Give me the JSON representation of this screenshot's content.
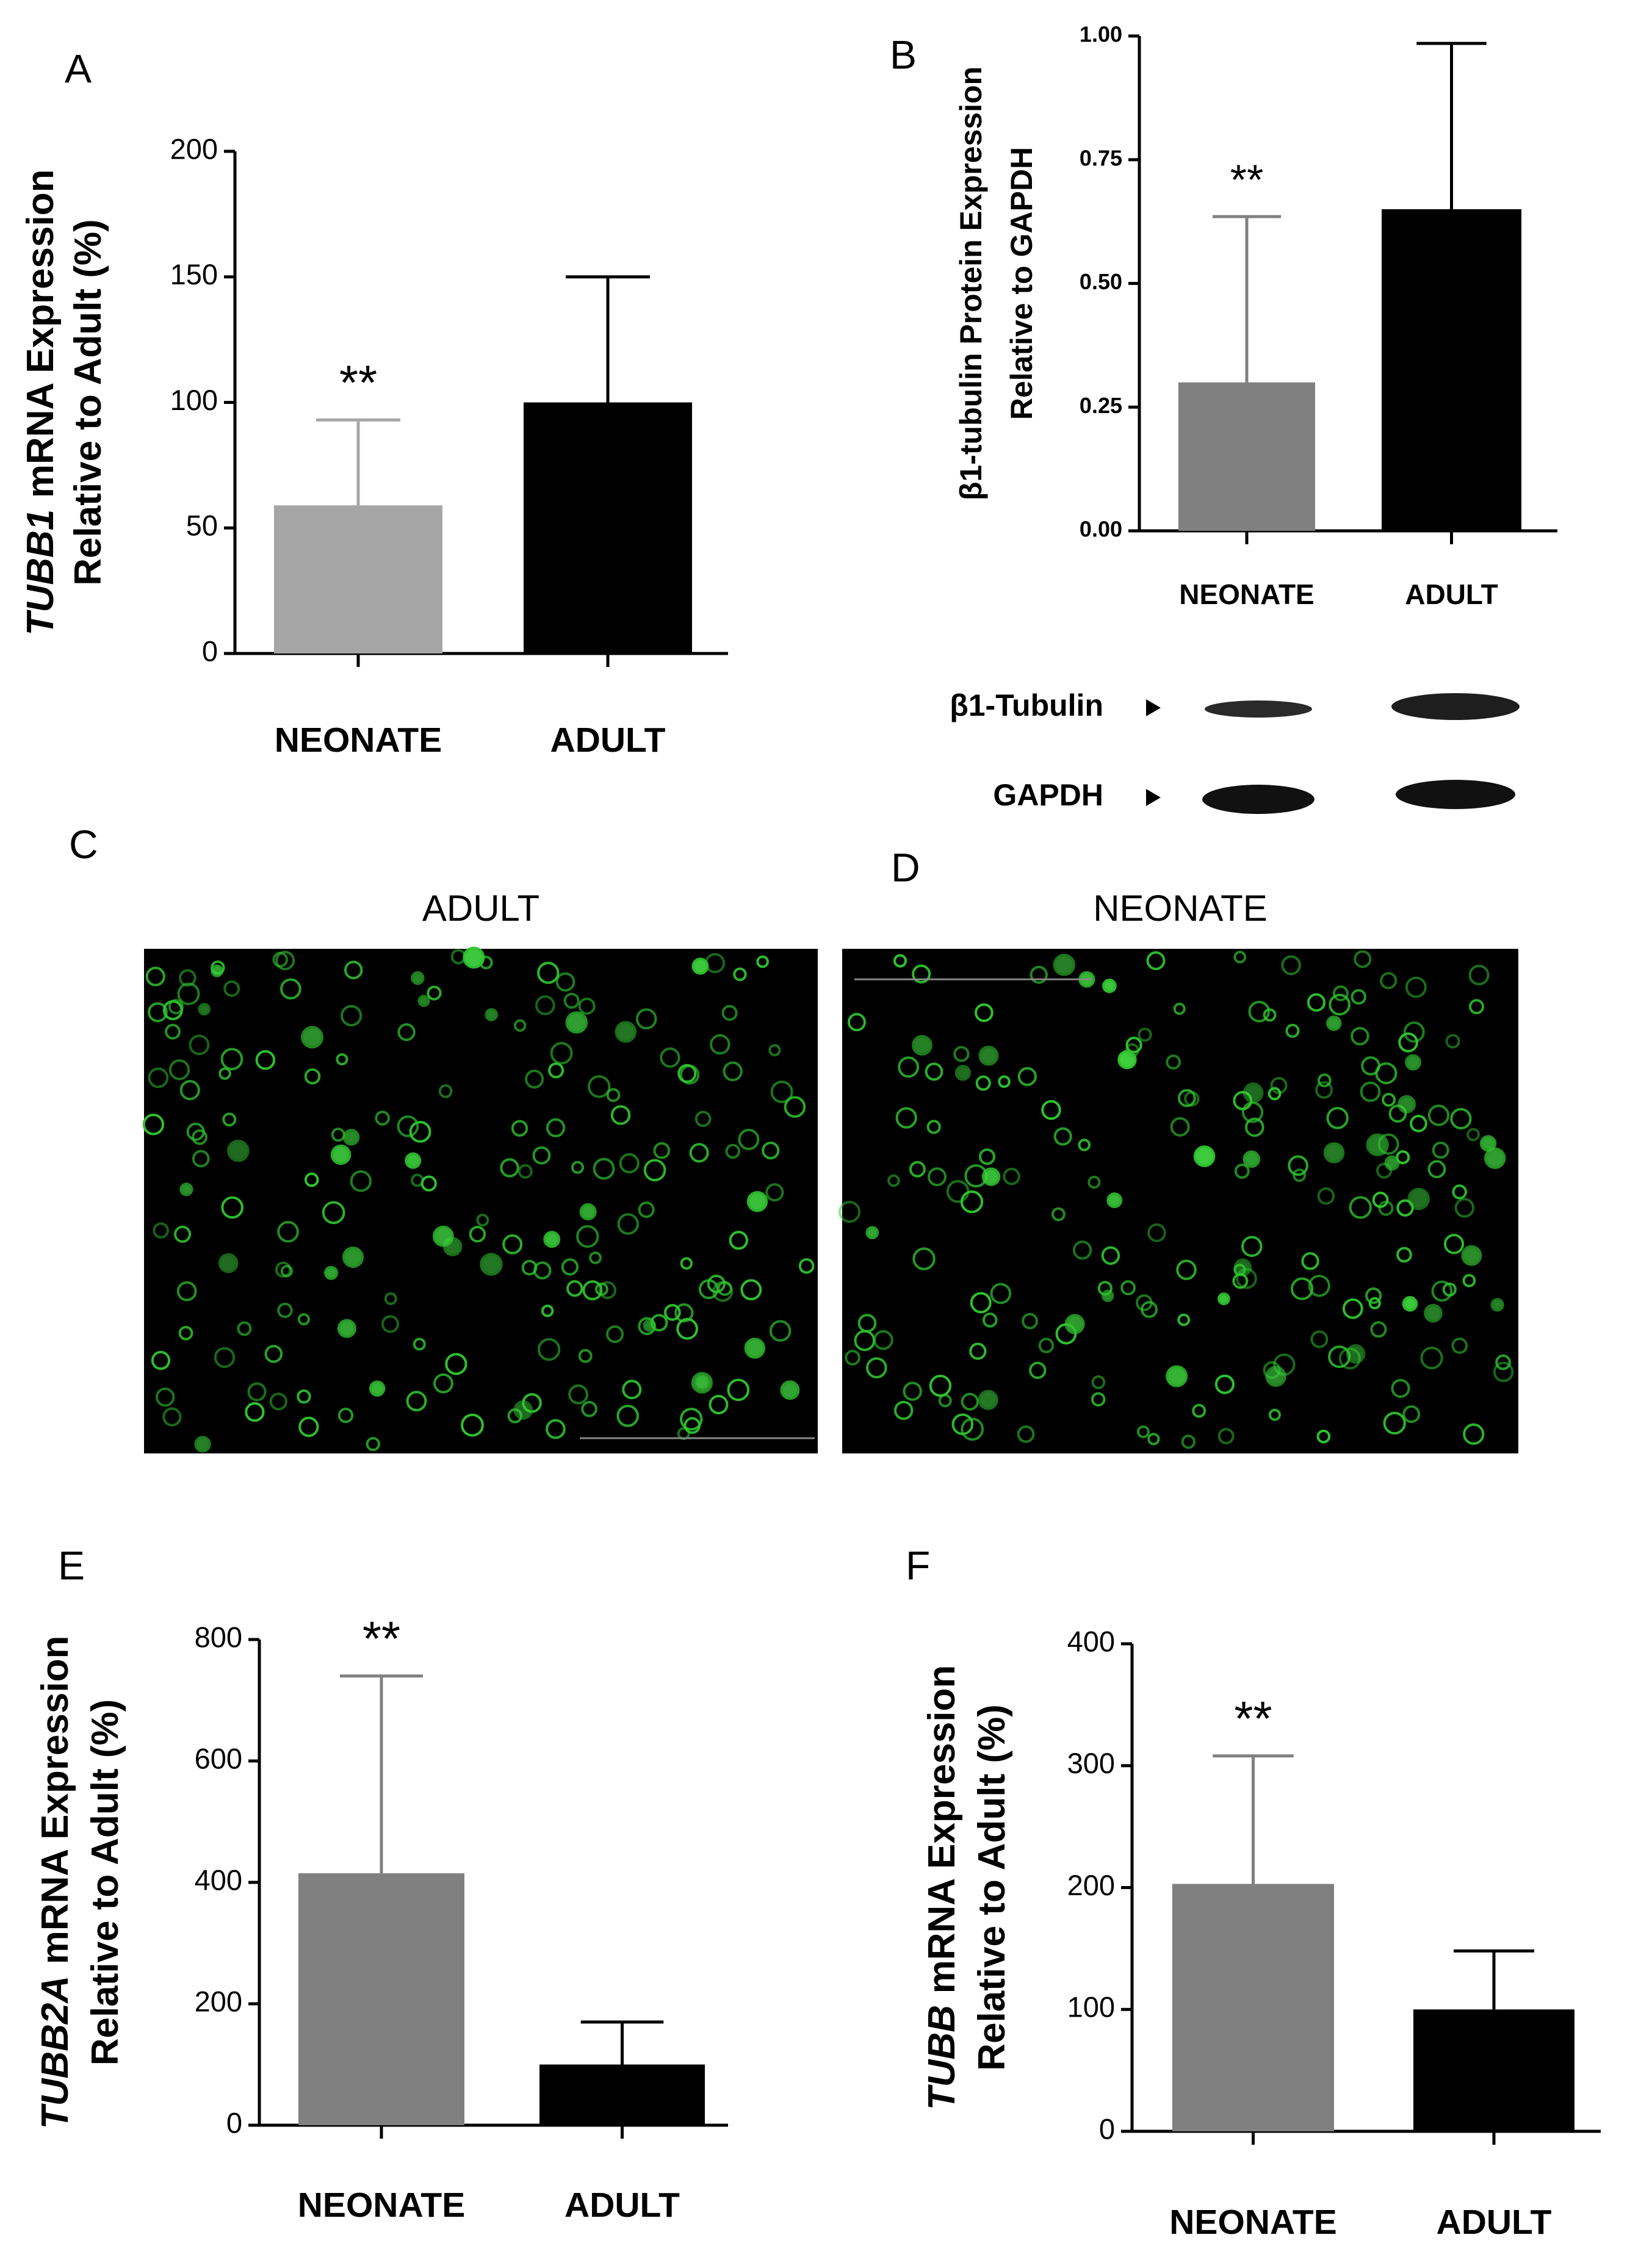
{
  "chart_data": [
    {
      "type": "bar",
      "panel": "A",
      "categories": [
        "NEONATE",
        "ADULT"
      ],
      "values": [
        59,
        100
      ],
      "errors": [
        34,
        50
      ],
      "colors": [
        "#a6a6a6",
        "#000000"
      ],
      "significance": [
        "**",
        null
      ],
      "ylabel_gene": "TUBB1",
      "ylabel": [
        "mRNA Expression",
        "Relative to Adult (%)"
      ],
      "ylim": [
        0,
        200
      ],
      "yticks": [
        0,
        50,
        100,
        150,
        200
      ]
    },
    {
      "type": "bar",
      "panel": "B",
      "categories": [
        "NEONATE",
        "ADULT"
      ],
      "values": [
        0.3,
        0.65
      ],
      "errors": [
        0.335,
        0.335
      ],
      "colors": [
        "#808080",
        "#000000"
      ],
      "significance": [
        "**",
        null
      ],
      "ylabel": [
        "β1-tubulin Protein Expression",
        "Relative to GAPDH"
      ],
      "ylim": [
        0,
        1
      ],
      "yticks": [
        {
          "value": 0,
          "label": "0.00"
        },
        {
          "value": 0.25,
          "label": "0.25"
        },
        {
          "value": 0.5,
          "label": "0.50"
        },
        {
          "value": 0.75,
          "label": "0.75"
        },
        {
          "value": 1,
          "label": "1.00"
        }
      ]
    },
    {
      "type": "bar",
      "panel": "E",
      "categories": [
        "NEONATE",
        "ADULT"
      ],
      "values": [
        415,
        100
      ],
      "errors": [
        325,
        70
      ],
      "colors": [
        "#808080",
        "#000000"
      ],
      "significance": [
        "**",
        null
      ],
      "ylabel_gene": "TUBB2A",
      "ylabel": [
        "mRNA Expression",
        "Relative to Adult (%)"
      ],
      "ylim": [
        0,
        800
      ],
      "yticks": [
        0,
        200,
        400,
        600,
        800
      ]
    },
    {
      "type": "bar",
      "panel": "F",
      "categories": [
        "NEONATE",
        "ADULT"
      ],
      "values": [
        203,
        100
      ],
      "errors": [
        105,
        48
      ],
      "colors": [
        "#808080",
        "#000000"
      ],
      "significance": [
        "**",
        null
      ],
      "ylabel_gene": "TUBB",
      "ylabel": [
        "mRNA Expression",
        "Relative to Adult (%)"
      ],
      "ylim": [
        0,
        400
      ],
      "yticks": [
        0,
        100,
        200,
        300,
        400
      ]
    }
  ],
  "blot": {
    "labels": [
      "β1-Tubulin",
      "GAPDH"
    ]
  },
  "images": [
    {
      "panel": "C",
      "title": "ADULT"
    },
    {
      "panel": "D",
      "title": "NEONATE"
    }
  ]
}
